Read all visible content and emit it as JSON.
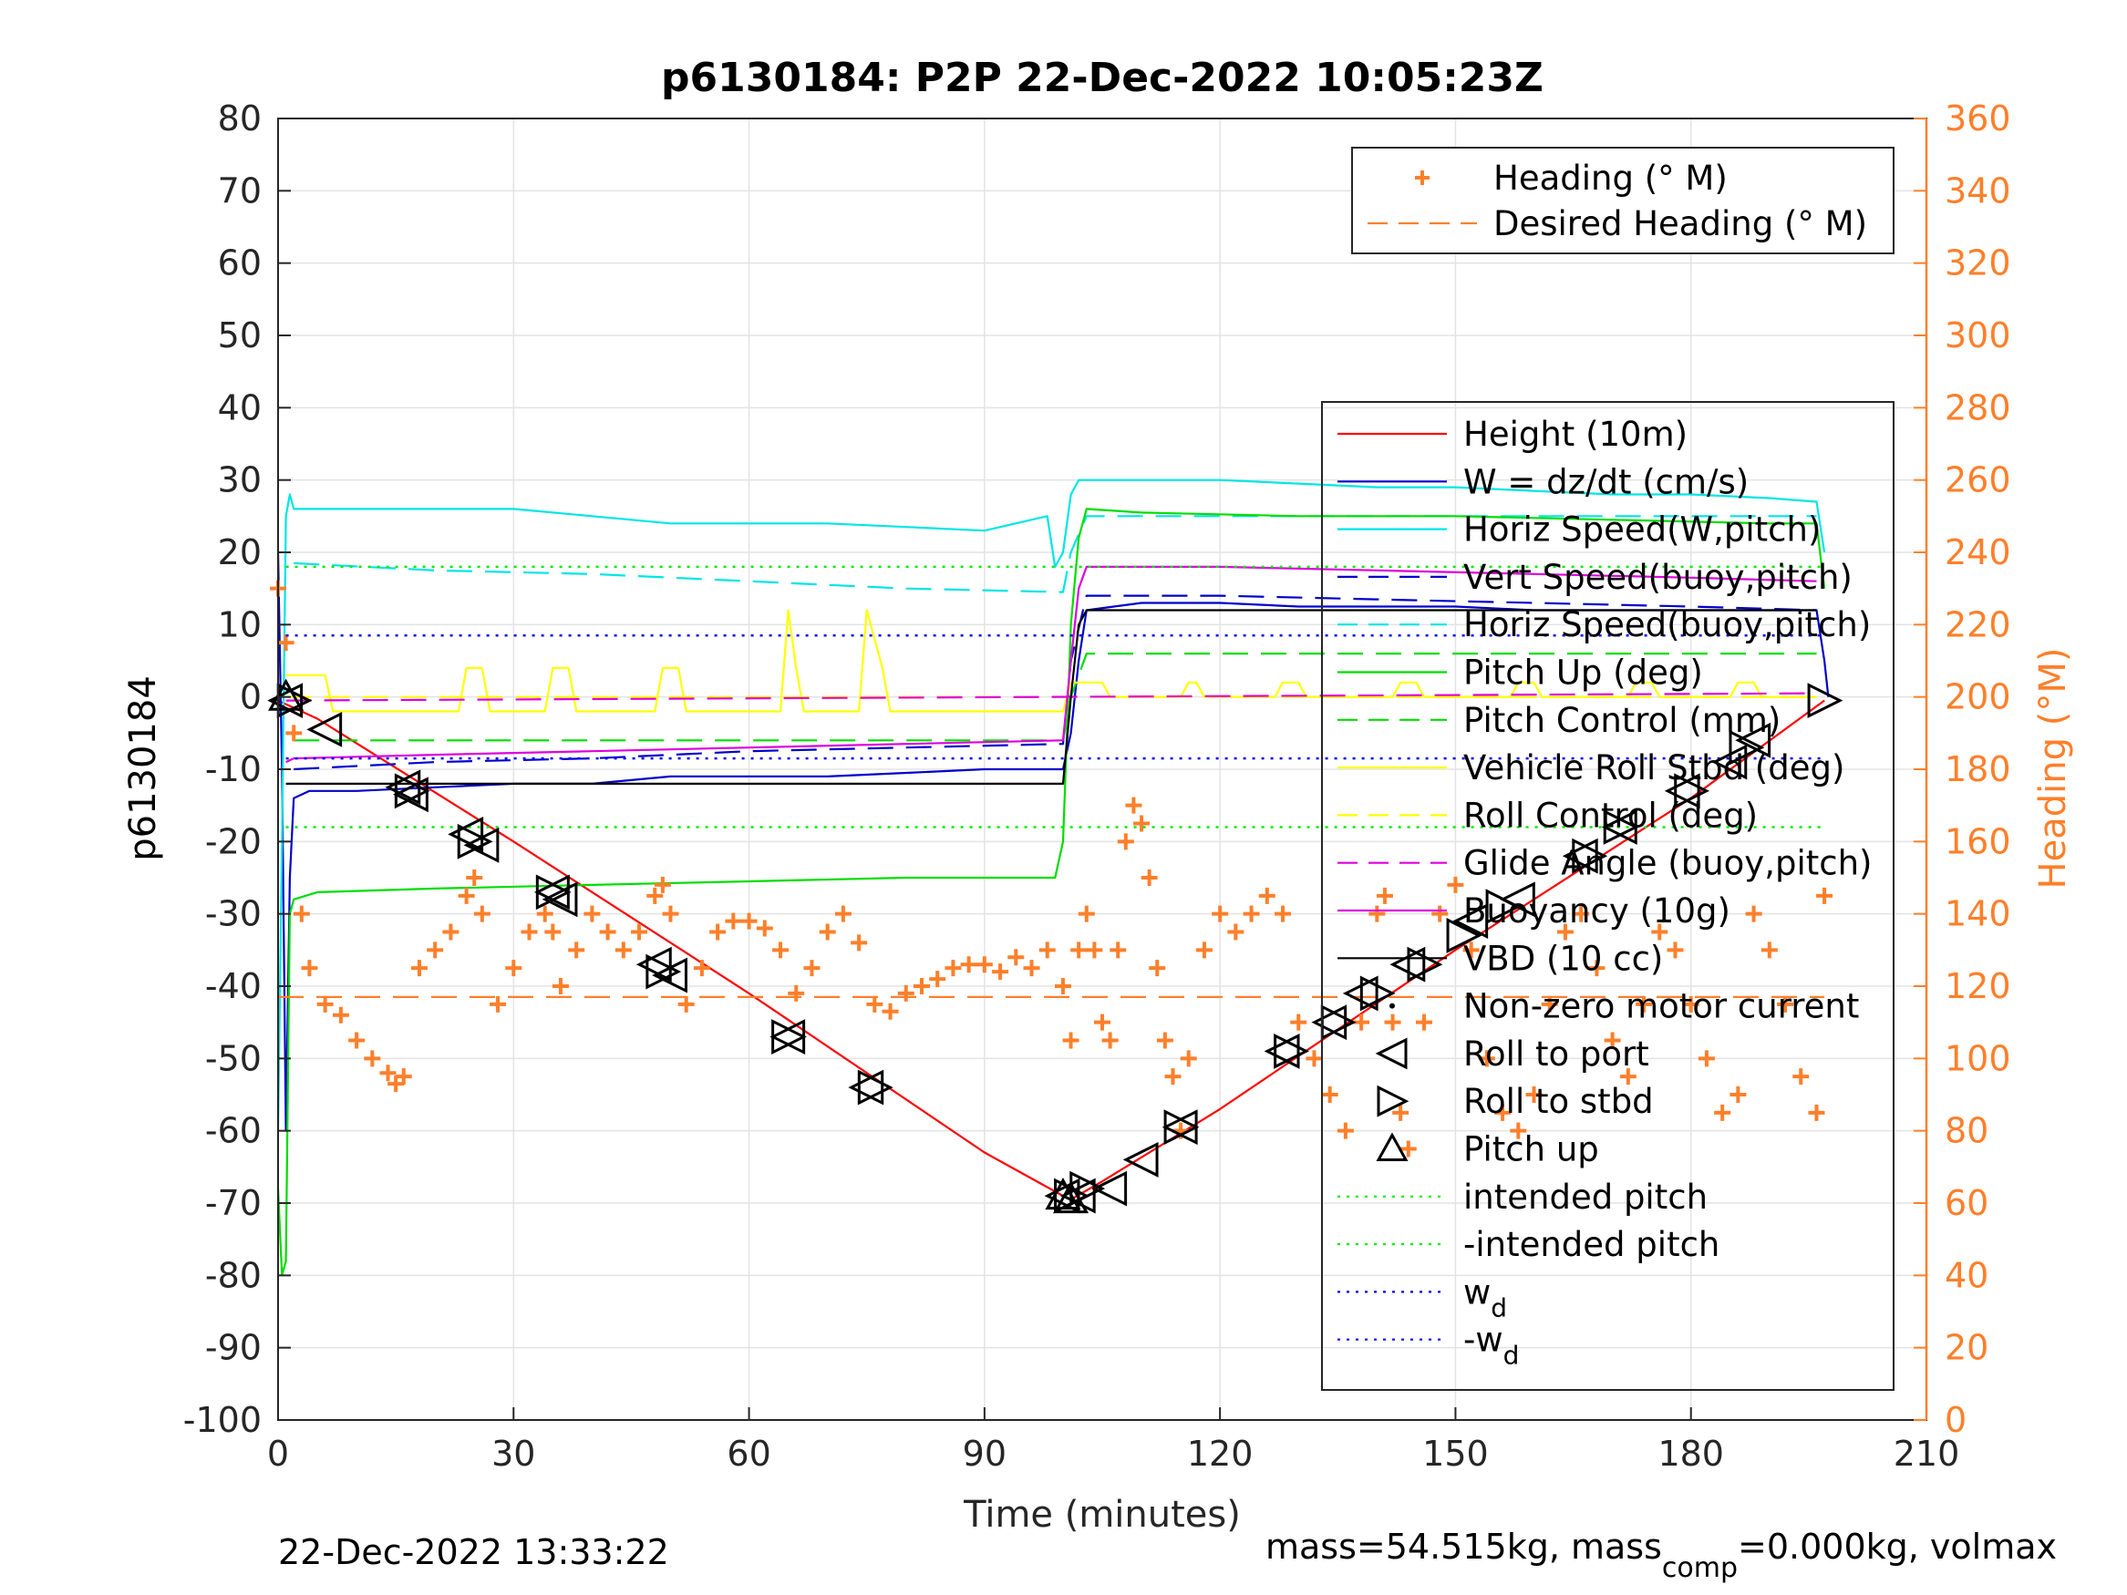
{
  "chart_data": {
    "type": "line",
    "title": "p6130184: P2P 22-Dec-2022 10:05:23Z",
    "xlabel": "Time (minutes)",
    "ylabel_left": "p6130184",
    "ylabel_right": "Heading (°M)",
    "xlim": [
      0,
      210
    ],
    "ylim_left": [
      -100,
      80
    ],
    "ylim_right": [
      0,
      360
    ],
    "grid": true,
    "x_ticks": [
      0,
      30,
      60,
      90,
      120,
      150,
      180,
      210
    ],
    "y_ticks_left": [
      80,
      70,
      60,
      50,
      40,
      30,
      20,
      10,
      0,
      -10,
      -20,
      -30,
      -40,
      -50,
      -60,
      -70,
      -80,
      -90,
      -100
    ],
    "y_ticks_right": [
      360,
      340,
      320,
      300,
      280,
      260,
      240,
      220,
      200,
      180,
      160,
      140,
      120,
      100,
      80,
      60,
      40,
      20,
      0
    ],
    "footer_left": "22-Dec-2022 13:33:22",
    "footer_right": "mass=54.515kg, mass",
    "footer_right_sub": "comp",
    "footer_right_tail": "=0.000kg, volmax",
    "legend_heading": [
      {
        "label": "Heading (° M)",
        "color": "#ff7f2a",
        "style": "plus"
      },
      {
        "label": "Desired Heading (° M)",
        "color": "#ff7f2a",
        "style": "dashed"
      }
    ],
    "legend_main": [
      {
        "label": "Height (10m)",
        "color": "#ff0000",
        "style": "solid"
      },
      {
        "label": "W = dz/dt (cm/s)",
        "color": "#0000cc",
        "style": "solid"
      },
      {
        "label": "Horiz Speed(W,pitch)",
        "color": "#00e5e5",
        "style": "solid"
      },
      {
        "label": "Vert Speed(buoy,pitch)",
        "color": "#0000cc",
        "style": "dashed"
      },
      {
        "label": "Horiz Speed(buoy,pitch)",
        "color": "#00e5e5",
        "style": "dashed"
      },
      {
        "label": "Pitch Up (deg)",
        "color": "#00dd00",
        "style": "solid"
      },
      {
        "label": "Pitch Control (mm)",
        "color": "#00dd00",
        "style": "dashed"
      },
      {
        "label": "Vehicle Roll Stbd (deg)",
        "color": "#ffff00",
        "style": "solid"
      },
      {
        "label": "Roll Control (deg)",
        "color": "#ffff00",
        "style": "dashed"
      },
      {
        "label": "Glide Angle (buoy,pitch)",
        "color": "#dd00dd",
        "style": "dashed"
      },
      {
        "label": "Buoyancy (10g)",
        "color": "#dd00dd",
        "style": "solid"
      },
      {
        "label": "VBD (10 cc)",
        "color": "#000000",
        "style": "solid"
      },
      {
        "label": "Non-zero motor current",
        "color": "#000000",
        "style": "dot"
      },
      {
        "label": "Roll to port",
        "color": "#000000",
        "style": "tri-left"
      },
      {
        "label": "Roll to stbd",
        "color": "#000000",
        "style": "tri-right"
      },
      {
        "label": "Pitch up",
        "color": "#000000",
        "style": "tri-up"
      },
      {
        "label": "intended pitch",
        "color": "#00ee00",
        "style": "dotted"
      },
      {
        "label": "-intended pitch",
        "color": "#00ee00",
        "style": "dotted"
      },
      {
        "label": "w",
        "sub": "d",
        "color": "#0000ff",
        "style": "dotted"
      },
      {
        "label": "-w",
        "sub": "d",
        "color": "#0000ff",
        "style": "dotted"
      }
    ],
    "series": [
      {
        "name": "Height (10m)",
        "axis": "left",
        "color": "#ff0000",
        "style": "solid",
        "x": [
          0,
          1,
          5,
          30,
          60,
          90,
          100,
          101,
          105,
          120,
          150,
          180,
          197
        ],
        "y": [
          -0.5,
          -1,
          -3,
          -20,
          -41,
          -63,
          -69,
          -69.5,
          -67,
          -57,
          -35,
          -14,
          -0.5
        ]
      },
      {
        "name": "W = dz/dt (cm/s)",
        "axis": "left",
        "color": "#0000cc",
        "style": "solid",
        "x": [
          0,
          0.5,
          1,
          1.5,
          2,
          4,
          10,
          20,
          30,
          40,
          50,
          60,
          70,
          80,
          90,
          99,
          100,
          101,
          102,
          103,
          110,
          120,
          130,
          140,
          150,
          160,
          170,
          180,
          190,
          196,
          197,
          197.5
        ],
        "y": [
          20,
          -10,
          -60,
          -25,
          -14,
          -13,
          -13,
          -12.5,
          -12,
          -12,
          -11,
          -11,
          -11,
          -10.5,
          -10,
          -10,
          -10,
          -5,
          5,
          12,
          13,
          13,
          12.5,
          12.5,
          12.5,
          12,
          12,
          12,
          12,
          12,
          5,
          0
        ]
      },
      {
        "name": "Horiz Speed(W,pitch)",
        "axis": "left",
        "color": "#00e5e5",
        "style": "solid",
        "x": [
          0,
          0.5,
          1,
          1.5,
          2,
          5,
          10,
          20,
          30,
          40,
          50,
          60,
          70,
          80,
          90,
          98,
          99,
          100,
          101,
          102,
          103,
          110,
          120,
          130,
          140,
          150,
          160,
          170,
          180,
          190,
          196,
          197
        ],
        "y": [
          -60,
          -20,
          25,
          28,
          26,
          26,
          26,
          26,
          26,
          25,
          24,
          24,
          24,
          23.5,
          23,
          25,
          18,
          20,
          28,
          30,
          30,
          30,
          30,
          29.5,
          29,
          29,
          28.5,
          28,
          28,
          27.5,
          27,
          20
        ]
      },
      {
        "name": "Vert Speed(buoy,pitch)",
        "axis": "left",
        "color": "#0000cc",
        "style": "dashed",
        "x": [
          2,
          20,
          40,
          60,
          80,
          100,
          101,
          103,
          120,
          140,
          160,
          180,
          196
        ],
        "y": [
          -10,
          -9,
          -8.5,
          -7.5,
          -7,
          -6.5,
          5,
          14,
          14,
          13.5,
          13,
          12.5,
          12
        ]
      },
      {
        "name": "Horiz Speed(buoy,pitch)",
        "axis": "left",
        "color": "#00e5e5",
        "style": "dashed",
        "x": [
          2,
          20,
          40,
          60,
          80,
          100,
          101,
          103,
          120,
          140,
          160,
          180,
          196
        ],
        "y": [
          18.5,
          17.5,
          17,
          16,
          15,
          14.5,
          20,
          25,
          25,
          25,
          25,
          25,
          25
        ]
      },
      {
        "name": "Pitch Up (deg)",
        "axis": "left",
        "color": "#00dd00",
        "style": "solid",
        "x": [
          0,
          0.5,
          1,
          1.5,
          2,
          5,
          20,
          40,
          60,
          80,
          99,
          100,
          101,
          102,
          103,
          110,
          130,
          150,
          170,
          190,
          196,
          197
        ],
        "y": [
          -68,
          -80,
          -78,
          -30,
          -28,
          -27,
          -26.5,
          -26,
          -25.5,
          -25,
          -25,
          -20,
          10,
          22,
          26,
          25.5,
          25,
          25,
          24.5,
          24,
          24,
          15
        ]
      },
      {
        "name": "Pitch Control (mm)",
        "axis": "left",
        "color": "#00dd00",
        "style": "dashed",
        "x": [
          2,
          100,
          101,
          103,
          196
        ],
        "y": [
          -6,
          -6,
          0,
          6,
          6
        ]
      },
      {
        "name": "Vehicle Roll Stbd (deg)",
        "axis": "left",
        "color": "#ffff00",
        "style": "solid",
        "x": [
          1,
          2,
          6,
          7,
          23,
          24,
          26,
          27,
          34,
          35,
          37,
          38,
          48,
          49,
          51,
          52,
          64,
          65,
          66,
          67,
          74,
          75,
          77,
          78,
          100,
          101,
          105,
          106,
          115,
          116,
          117,
          118,
          127,
          128,
          130,
          131,
          142,
          143,
          145,
          146,
          157,
          158,
          160,
          161,
          172,
          173,
          175,
          176,
          185,
          186,
          188,
          189,
          196
        ],
        "y": [
          3,
          3,
          3,
          -2,
          -2,
          4,
          4,
          -2,
          -2,
          4,
          4,
          -2,
          -2,
          4,
          4,
          -2,
          -2,
          12,
          4,
          -2,
          -2,
          12,
          4,
          -2,
          -2,
          2,
          2,
          0,
          0,
          2,
          2,
          0,
          0,
          2,
          2,
          0,
          0,
          2,
          2,
          0,
          0,
          2,
          2,
          0,
          0,
          2,
          2,
          0,
          0,
          2,
          2,
          0,
          0
        ]
      },
      {
        "name": "Roll Control (deg)",
        "axis": "left",
        "color": "#ffff00",
        "style": "dashed",
        "x": [
          1,
          100,
          101,
          196
        ],
        "y": [
          0,
          0,
          0,
          0
        ]
      },
      {
        "name": "Glide Angle (buoy,pitch)",
        "axis": "left",
        "color": "#dd00dd",
        "style": "dashed",
        "x": [
          1,
          196
        ],
        "y": [
          -0.5,
          0.5
        ]
      },
      {
        "name": "Buoyancy (10g)",
        "axis": "left",
        "color": "#dd00dd",
        "style": "solid",
        "x": [
          1,
          2,
          20,
          40,
          60,
          80,
          100,
          101,
          102,
          103,
          120,
          140,
          160,
          180,
          196
        ],
        "y": [
          -9,
          -8.5,
          -8,
          -7.5,
          -7,
          -6.5,
          -6,
          5,
          15,
          18,
          18,
          17.5,
          17,
          16.5,
          16
        ]
      },
      {
        "name": "VBD (10 cc)",
        "axis": "left",
        "color": "#000000",
        "style": "solid",
        "x": [
          1,
          2,
          20,
          40,
          60,
          80,
          100,
          101,
          102,
          103,
          120,
          140,
          160,
          180,
          196
        ],
        "y": [
          -12,
          -12,
          -12,
          -12,
          -12,
          -12,
          -12,
          0,
          10,
          12,
          12,
          12,
          12,
          12,
          12
        ]
      },
      {
        "name": "Heading (° M)",
        "axis": "right",
        "color": "#ff7f2a",
        "style": "plus",
        "x": [
          0,
          1,
          2,
          3,
          4,
          6,
          8,
          10,
          12,
          14,
          15,
          16,
          18,
          20,
          22,
          24,
          25,
          26,
          28,
          30,
          32,
          34,
          35,
          36,
          38,
          40,
          42,
          44,
          46,
          48,
          49,
          50,
          52,
          54,
          56,
          58,
          60,
          62,
          64,
          66,
          68,
          70,
          72,
          74,
          76,
          78,
          80,
          82,
          84,
          86,
          88,
          90,
          92,
          94,
          96,
          98,
          100,
          101,
          102,
          103,
          104,
          105,
          106,
          107,
          108,
          109,
          110,
          111,
          112,
          113,
          114,
          115,
          116,
          118,
          120,
          122,
          124,
          126,
          128,
          130,
          132,
          134,
          136,
          138,
          140,
          141,
          142,
          143,
          144,
          146,
          148,
          150,
          152,
          154,
          156,
          158,
          160,
          162,
          164,
          166,
          168,
          170,
          172,
          174,
          176,
          178,
          180,
          182,
          184,
          186,
          188,
          190,
          192,
          194,
          196,
          197
        ],
        "y": [
          230,
          215,
          190,
          140,
          125,
          115,
          112,
          105,
          100,
          96,
          93,
          95,
          125,
          130,
          135,
          145,
          150,
          140,
          115,
          125,
          135,
          140,
          135,
          120,
          130,
          140,
          135,
          130,
          135,
          145,
          148,
          140,
          115,
          125,
          135,
          138,
          138,
          136,
          130,
          118,
          125,
          135,
          140,
          132,
          115,
          113,
          118,
          120,
          122,
          125,
          126,
          126,
          124,
          128,
          125,
          130,
          120,
          105,
          130,
          140,
          130,
          110,
          105,
          130,
          160,
          170,
          165,
          150,
          125,
          105,
          95,
          80,
          100,
          130,
          140,
          135,
          140,
          145,
          140,
          110,
          100,
          90,
          80,
          110,
          140,
          145,
          110,
          85,
          75,
          110,
          140,
          148,
          130,
          100,
          85,
          80,
          90,
          115,
          135,
          140,
          125,
          105,
          95,
          115,
          135,
          130,
          115,
          100,
          85,
          90,
          140,
          130,
          115,
          95,
          85,
          145
        ]
      },
      {
        "name": "Desired Heading (° M)",
        "axis": "right",
        "color": "#ff7f2a",
        "style": "dashed",
        "x": [
          0,
          197
        ],
        "y": [
          117,
          117
        ]
      },
      {
        "name": "intended pitch",
        "axis": "left",
        "color": "#00ee00",
        "style": "dotted",
        "x": [
          1,
          197
        ],
        "y": [
          18,
          18
        ]
      },
      {
        "name": "-intended pitch",
        "axis": "left",
        "color": "#00ee00",
        "style": "dotted",
        "x": [
          1,
          197
        ],
        "y": [
          -18,
          -18
        ]
      },
      {
        "name": "w",
        "axis": "left",
        "color": "#0000ff",
        "style": "dotted",
        "x": [
          1,
          197
        ],
        "y": [
          8.5,
          8.5
        ]
      },
      {
        "name": "-w",
        "axis": "left",
        "color": "#0000ff",
        "style": "dotted",
        "x": [
          1,
          197
        ],
        "y": [
          -8.5,
          -8.5
        ]
      }
    ],
    "markers": {
      "roll_to_port": {
        "x": [
          1,
          6,
          16,
          17,
          24,
          26,
          35,
          36,
          48,
          50,
          65,
          75,
          100,
          102,
          106,
          110,
          115,
          128,
          134,
          138,
          144,
          152,
          158,
          166,
          171,
          179,
          185,
          188
        ],
        "y": [
          -0.5,
          -4.5,
          -12.5,
          -13.5,
          -19,
          -20.5,
          -27,
          -28,
          -37,
          -38.5,
          -47,
          -54,
          -69,
          -69,
          -68,
          -64,
          -59.5,
          -49,
          -45,
          -41,
          -37,
          -31,
          -28,
          -22,
          -18,
          -13,
          -9,
          -6
        ]
      },
      "roll_to_stbd": {
        "x": [
          2,
          17,
          25,
          35,
          49,
          65,
          76,
          101,
          103,
          115,
          129,
          135,
          140,
          146,
          151,
          156,
          167,
          171,
          180,
          187,
          197
        ],
        "y": [
          -0.5,
          -13,
          -20,
          -27,
          -38,
          -47,
          -54,
          -69,
          -68,
          -59.5,
          -49,
          -45,
          -41,
          -37,
          -33,
          -29,
          -22,
          -18,
          -13,
          -7,
          -0.5
        ]
      },
      "pitch_up": {
        "x": [
          1,
          100,
          101
        ],
        "y": [
          0,
          -69,
          -69.5
        ]
      }
    }
  }
}
